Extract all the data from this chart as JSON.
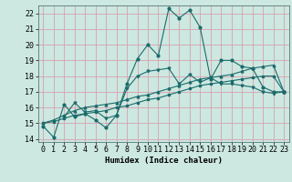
{
  "xlabel": "Humidex (Indice chaleur)",
  "bg_color": "#cce8e0",
  "grid_color": "#d8a0b0",
  "line_color": "#1a6b6b",
  "xlim": [
    -0.5,
    23.5
  ],
  "ylim": [
    13.8,
    22.5
  ],
  "xticks": [
    0,
    1,
    2,
    3,
    4,
    5,
    6,
    7,
    8,
    9,
    10,
    11,
    12,
    13,
    14,
    15,
    16,
    17,
    18,
    19,
    20,
    21,
    22,
    23
  ],
  "yticks": [
    14,
    15,
    16,
    17,
    18,
    19,
    20,
    21,
    22
  ],
  "line1_x": [
    0,
    1,
    2,
    3,
    4,
    5,
    6,
    7,
    8,
    9,
    10,
    11,
    12,
    13,
    14,
    15,
    16,
    17,
    18,
    19,
    20,
    21,
    22,
    23
  ],
  "line1_y": [
    14.8,
    14.1,
    16.2,
    15.4,
    15.6,
    15.2,
    14.7,
    15.5,
    17.5,
    19.1,
    20.0,
    19.3,
    22.3,
    21.7,
    22.2,
    21.1,
    17.8,
    19.0,
    19.0,
    18.6,
    18.5,
    17.3,
    17.0,
    17.0
  ],
  "line2_x": [
    0,
    1,
    2,
    3,
    4,
    5,
    6,
    7,
    8,
    9,
    10,
    11,
    12,
    13,
    14,
    15,
    16,
    17,
    18,
    19,
    20,
    21,
    22,
    23
  ],
  "line2_y": [
    15.0,
    15.2,
    15.5,
    15.8,
    16.0,
    16.1,
    16.2,
    16.3,
    16.5,
    16.7,
    16.8,
    17.0,
    17.2,
    17.4,
    17.6,
    17.8,
    17.9,
    18.0,
    18.1,
    18.3,
    18.5,
    18.6,
    18.7,
    17.0
  ],
  "line3_x": [
    0,
    1,
    2,
    3,
    4,
    5,
    6,
    7,
    8,
    9,
    10,
    11,
    12,
    13,
    14,
    15,
    16,
    17,
    18,
    19,
    20,
    21,
    22,
    23
  ],
  "line3_y": [
    15.0,
    15.1,
    15.3,
    15.5,
    15.6,
    15.7,
    15.8,
    16.0,
    16.1,
    16.3,
    16.5,
    16.6,
    16.8,
    17.0,
    17.2,
    17.4,
    17.5,
    17.6,
    17.7,
    17.8,
    17.9,
    18.0,
    18.0,
    17.0
  ],
  "line4_x": [
    2,
    3,
    4,
    5,
    6,
    7,
    8,
    9,
    10,
    11,
    12,
    13,
    14,
    15,
    16,
    17,
    18,
    19,
    20,
    21,
    22,
    23
  ],
  "line4_y": [
    15.4,
    16.3,
    15.7,
    15.8,
    15.3,
    15.5,
    17.2,
    18.0,
    18.3,
    18.4,
    18.5,
    17.5,
    18.1,
    17.6,
    17.9,
    17.5,
    17.5,
    17.4,
    17.3,
    17.0,
    16.9,
    17.0
  ],
  "label_fontsize": 6.5,
  "tick_fontsize": 6.0
}
